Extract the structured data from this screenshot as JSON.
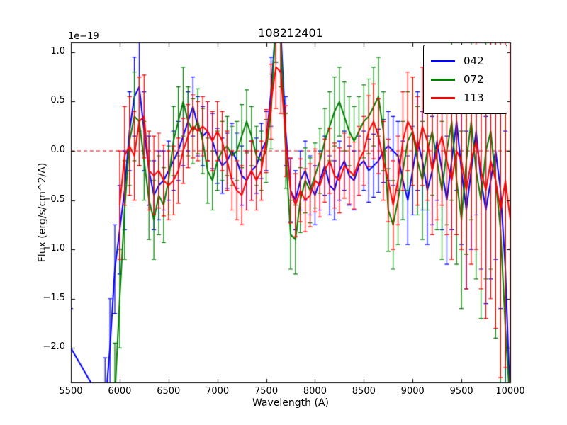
{
  "chart_data": {
    "type": "line",
    "title": "108212401",
    "xlabel": "Wavelength (A)",
    "ylabel": "Flux (erg/s/cm^2/A)",
    "y_offset_label": "1e−19",
    "xlim": [
      5500,
      10000
    ],
    "ylim": [
      -2.35,
      1.1
    ],
    "grid": false,
    "legend_position": "upper right",
    "x_tick_values": [
      5500,
      6000,
      6500,
      7000,
      7500,
      8000,
      8500,
      9000,
      9500,
      10000
    ],
    "x_tick_labels": [
      "5500",
      "6000",
      "6500",
      "7000",
      "7500",
      "8000",
      "8500",
      "9000",
      "9500",
      "10000"
    ],
    "y_tick_values": [
      1.0,
      0.5,
      0.0,
      -0.5,
      -1.0,
      -1.5,
      -2.0
    ],
    "y_tick_labels": [
      "1.0",
      "0.5",
      "0.0",
      "−0.5",
      "−1.0",
      "−1.5",
      "−2.0"
    ],
    "zero_line": {
      "y": 0.0,
      "color": "#cc0000",
      "style": "dashed"
    },
    "x": [
      5500,
      5850,
      5900,
      5950,
      6000,
      6050,
      6100,
      6150,
      6200,
      6250,
      6300,
      6350,
      6400,
      6450,
      6500,
      6550,
      6600,
      6650,
      6700,
      6750,
      6800,
      6850,
      6900,
      6950,
      7000,
      7050,
      7100,
      7150,
      7200,
      7250,
      7300,
      7350,
      7400,
      7450,
      7500,
      7550,
      7600,
      7650,
      7700,
      7750,
      7800,
      7850,
      7900,
      7950,
      8000,
      8050,
      8100,
      8150,
      8200,
      8250,
      8300,
      8350,
      8400,
      8450,
      8500,
      8550,
      8600,
      8650,
      8700,
      8750,
      8800,
      8850,
      8900,
      8950,
      9000,
      9050,
      9100,
      9150,
      9200,
      9250,
      9300,
      9350,
      9400,
      9450,
      9500,
      9550,
      9600,
      9650,
      9700,
      9750,
      9800,
      9850,
      9900,
      9950,
      10000
    ],
    "series": [
      {
        "name": "042",
        "color": "#0000ff",
        "y": [
          -2.0,
          -2.6,
          -2.0,
          -1.2,
          -0.8,
          -0.4,
          0.2,
          0.55,
          0.65,
          0.2,
          -0.2,
          -0.45,
          -0.35,
          -0.3,
          -0.2,
          -0.1,
          0.0,
          0.15,
          0.3,
          0.45,
          0.25,
          0.15,
          0.2,
          0.1,
          -0.05,
          -0.15,
          -0.1,
          0.0,
          -0.1,
          -0.25,
          -0.3,
          -0.2,
          -0.15,
          0.0,
          0.1,
          0.6,
          1.3,
          1.2,
          0.2,
          -0.4,
          -0.5,
          -0.3,
          -0.2,
          -0.35,
          -0.45,
          -0.3,
          -0.15,
          -0.35,
          -0.4,
          -0.2,
          -0.1,
          -0.25,
          -0.3,
          -0.15,
          -0.1,
          -0.2,
          -0.15,
          -0.1,
          0.0,
          0.05,
          0.0,
          -0.05,
          -0.3,
          -0.5,
          -0.2,
          0.1,
          -0.1,
          -0.4,
          -0.2,
          0.1,
          -0.2,
          -0.5,
          -0.1,
          0.3,
          -0.2,
          -0.6,
          -0.2,
          0.2,
          -0.3,
          -0.6,
          -0.3,
          0.0,
          -0.4,
          -1.2,
          -2.6
        ],
        "yerr": [
          0.4,
          0.5,
          0.5,
          0.45,
          0.45,
          0.4,
          0.4,
          0.4,
          0.45,
          0.4,
          0.35,
          0.35,
          0.35,
          0.3,
          0.3,
          0.3,
          0.3,
          0.3,
          0.3,
          0.3,
          0.3,
          0.3,
          0.3,
          0.28,
          0.28,
          0.28,
          0.28,
          0.28,
          0.28,
          0.3,
          0.3,
          0.3,
          0.28,
          0.28,
          0.3,
          0.35,
          0.4,
          0.4,
          0.35,
          0.32,
          0.3,
          0.3,
          0.3,
          0.3,
          0.3,
          0.3,
          0.3,
          0.3,
          0.3,
          0.3,
          0.3,
          0.3,
          0.3,
          0.3,
          0.3,
          0.32,
          0.32,
          0.32,
          0.32,
          0.35,
          0.35,
          0.35,
          0.4,
          0.45,
          0.45,
          0.5,
          0.5,
          0.55,
          0.55,
          0.6,
          0.6,
          0.65,
          0.7,
          0.7,
          0.75,
          0.8,
          0.8,
          0.85,
          0.9,
          0.95,
          1.0,
          1.1,
          1.2,
          1.4,
          1.6
        ]
      },
      {
        "name": "072",
        "color": "#007f00",
        "y": [
          null,
          null,
          null,
          -2.5,
          -1.5,
          -0.6,
          0.1,
          0.35,
          0.3,
          -0.1,
          -0.5,
          -0.7,
          -0.45,
          -0.55,
          -0.3,
          0.1,
          0.3,
          0.5,
          0.3,
          0.2,
          0.3,
          0.1,
          -0.2,
          -0.3,
          -0.1,
          0.0,
          0.05,
          -0.05,
          0.0,
          0.15,
          0.3,
          0.15,
          -0.05,
          -0.1,
          0.0,
          0.4,
          1.35,
          1.1,
          0.0,
          -0.85,
          -0.9,
          -0.5,
          -0.3,
          -0.4,
          -0.25,
          -0.1,
          0.1,
          0.25,
          0.4,
          0.5,
          0.35,
          0.2,
          0.1,
          0.2,
          0.3,
          0.35,
          0.45,
          0.55,
          0.2,
          -0.6,
          -0.75,
          -0.5,
          -0.2,
          0.1,
          0.2,
          -0.1,
          -0.3,
          0.0,
          0.2,
          -0.1,
          -0.4,
          0.0,
          0.3,
          -0.3,
          -0.7,
          -0.1,
          0.3,
          -0.2,
          -0.5,
          0.0,
          0.2,
          -0.3,
          -0.8,
          -1.8,
          -2.6
        ],
        "yerr": [
          null,
          null,
          null,
          0.55,
          0.5,
          0.5,
          0.45,
          0.45,
          0.45,
          0.4,
          0.4,
          0.4,
          0.4,
          0.38,
          0.35,
          0.35,
          0.35,
          0.35,
          0.35,
          0.33,
          0.33,
          0.33,
          0.33,
          0.3,
          0.3,
          0.3,
          0.3,
          0.3,
          0.3,
          0.32,
          0.32,
          0.3,
          0.3,
          0.3,
          0.32,
          0.38,
          0.45,
          0.45,
          0.38,
          0.35,
          0.35,
          0.33,
          0.33,
          0.33,
          0.33,
          0.33,
          0.33,
          0.35,
          0.35,
          0.35,
          0.35,
          0.35,
          0.35,
          0.35,
          0.37,
          0.38,
          0.4,
          0.4,
          0.4,
          0.42,
          0.45,
          0.45,
          0.5,
          0.5,
          0.55,
          0.55,
          0.6,
          0.6,
          0.65,
          0.7,
          0.7,
          0.75,
          0.8,
          0.85,
          0.9,
          0.95,
          1.0,
          1.1,
          1.2,
          1.3,
          1.4,
          1.6,
          1.8,
          2.2,
          2.6
        ]
      },
      {
        "name": "113",
        "color": "#ff0000",
        "y": [
          null,
          null,
          null,
          null,
          -0.55,
          -0.05,
          0.05,
          -0.05,
          0.3,
          0.35,
          -0.2,
          -0.25,
          -0.2,
          -0.3,
          -0.35,
          -0.3,
          -0.2,
          0.0,
          0.15,
          0.25,
          0.2,
          0.25,
          0.2,
          0.1,
          0.2,
          0.1,
          -0.1,
          -0.3,
          -0.4,
          -0.45,
          -0.3,
          -0.2,
          -0.3,
          -0.2,
          0.1,
          0.5,
          0.85,
          0.8,
          0.1,
          -0.4,
          -0.55,
          -0.4,
          -0.5,
          -0.45,
          -0.3,
          -0.35,
          -0.2,
          -0.1,
          -0.25,
          -0.3,
          -0.15,
          -0.2,
          -0.25,
          -0.1,
          0.0,
          0.2,
          0.3,
          0.15,
          -0.1,
          -0.3,
          -0.55,
          -0.3,
          0.1,
          0.3,
          0.2,
          0.0,
          0.25,
          0.1,
          -0.2,
          0.0,
          0.15,
          -0.1,
          -0.3,
          0.0,
          -0.1,
          -0.4,
          -0.1,
          0.1,
          -0.2,
          -0.4,
          -0.1,
          -0.3,
          -0.6,
          -0.3,
          -0.7
        ],
        "yerr": [
          null,
          null,
          null,
          null,
          0.55,
          0.5,
          0.5,
          0.45,
          0.45,
          0.42,
          0.4,
          0.4,
          0.38,
          0.36,
          0.35,
          0.35,
          0.33,
          0.33,
          0.32,
          0.32,
          0.3,
          0.3,
          0.3,
          0.3,
          0.3,
          0.3,
          0.3,
          0.3,
          0.3,
          0.3,
          0.3,
          0.3,
          0.3,
          0.3,
          0.32,
          0.38,
          0.42,
          0.42,
          0.36,
          0.33,
          0.32,
          0.32,
          0.32,
          0.32,
          0.32,
          0.32,
          0.32,
          0.33,
          0.33,
          0.33,
          0.33,
          0.34,
          0.34,
          0.35,
          0.35,
          0.36,
          0.38,
          0.38,
          0.4,
          0.42,
          0.45,
          0.45,
          0.5,
          0.5,
          0.55,
          0.55,
          0.6,
          0.6,
          0.65,
          0.7,
          0.7,
          0.75,
          0.8,
          0.85,
          0.9,
          1.0,
          1.05,
          1.1,
          1.2,
          1.3,
          1.4,
          1.5,
          1.7,
          1.9,
          2.1
        ]
      }
    ]
  }
}
